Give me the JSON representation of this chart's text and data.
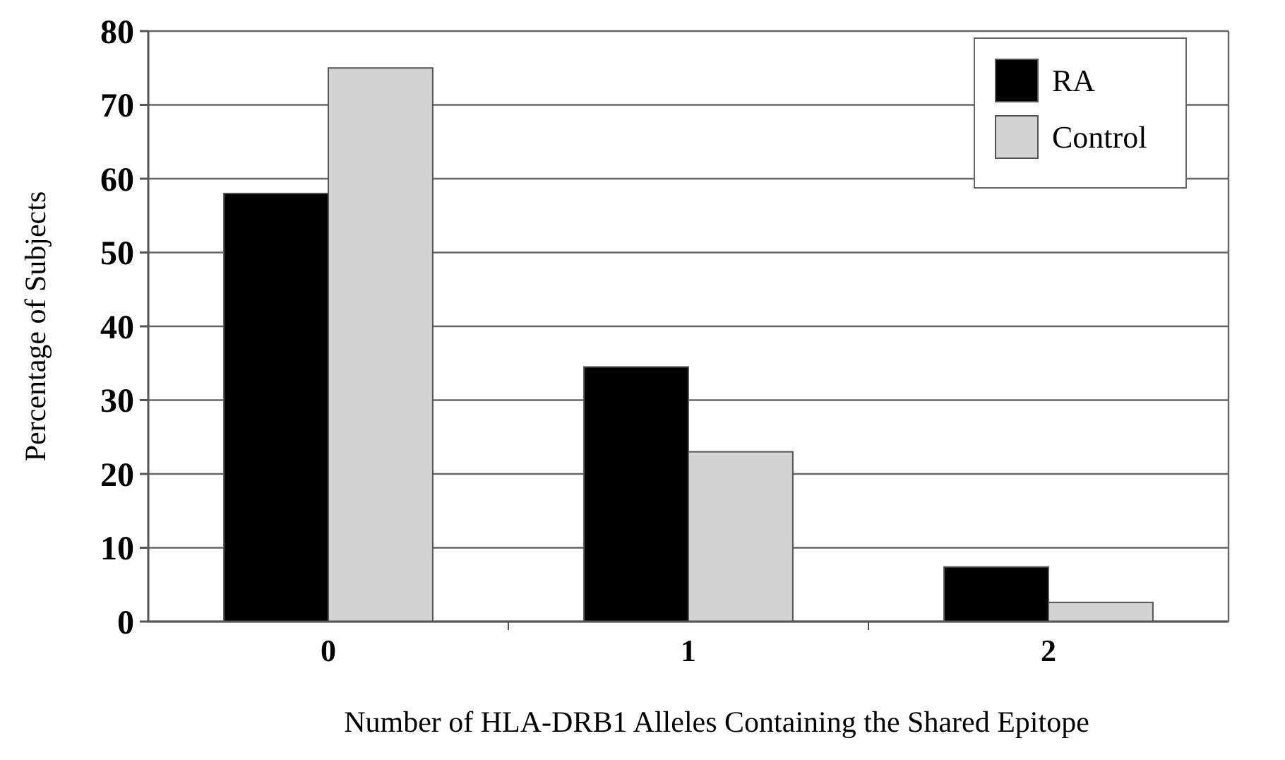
{
  "chart_data": {
    "type": "bar",
    "xlabel": "Number of HLA-DRB1 Alleles Containing the Shared Epitope",
    "ylabel": "Percentage of Subjects",
    "categories": [
      "0",
      "1",
      "2"
    ],
    "series": [
      {
        "name": "RA",
        "color": "#000000",
        "values": [
          58,
          34.5,
          7.4
        ]
      },
      {
        "name": "Control",
        "color": "#d3d3d3",
        "values": [
          75,
          23,
          2.6
        ]
      }
    ],
    "ylim": [
      0,
      80
    ],
    "yticks": [
      0,
      10,
      20,
      30,
      40,
      50,
      60,
      70,
      80
    ],
    "grid": "y",
    "legend": "top right"
  }
}
